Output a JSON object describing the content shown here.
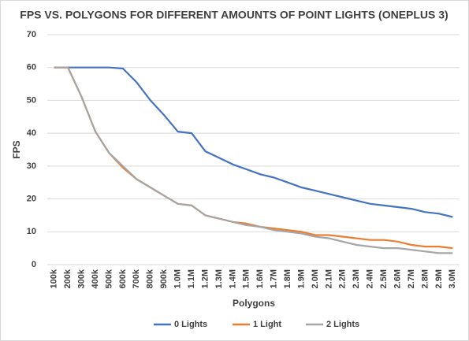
{
  "chart_data": {
    "type": "line",
    "title": "FPS VS. POLYGONS FOR DIFFERENT AMOUNTS OF POINT LIGHTS (ONEPLUS 3)",
    "x_label": "Polygons",
    "y_label": "FPS",
    "categories": [
      "100k",
      "200k",
      "300k",
      "400k",
      "500k",
      "600k",
      "700k",
      "800k",
      "900k",
      "1.0M",
      "1.1M",
      "1.2M",
      "1.3M",
      "1.4M",
      "1.5M",
      "1.6M",
      "1.7M",
      "1.8M",
      "1.9M",
      "2.0M",
      "2.1M",
      "2.2M",
      "2.3M",
      "2.4M",
      "2.5M",
      "2.6M",
      "2.7M",
      "2.8M",
      "2.9M",
      "3.0M"
    ],
    "series": [
      {
        "name": "0 Lights",
        "color": "#4472c4",
        "values": [
          60,
          60,
          60,
          60,
          60,
          59.7,
          55.5,
          50,
          45.5,
          40.5,
          40,
          34.5,
          32.5,
          30.5,
          29,
          27.5,
          26.5,
          25,
          23.5,
          22.5,
          21.5,
          20.5,
          19.5,
          18.5,
          18,
          17.5,
          17,
          16,
          15.5,
          14.5
        ]
      },
      {
        "name": "1 Light",
        "color": "#ed7d31",
        "values": [
          60,
          60,
          51,
          40.5,
          34,
          29.5,
          26,
          23.5,
          21,
          18.5,
          18,
          15,
          14,
          13,
          12.5,
          11.5,
          11,
          10.5,
          10,
          9,
          9,
          8.5,
          8,
          7.5,
          7.5,
          7,
          6,
          5.5,
          5.5,
          5
        ]
      },
      {
        "name": "2 Lights",
        "color": "#a5a5a5",
        "values": [
          60,
          60,
          51,
          40.5,
          34,
          30,
          26,
          23.5,
          21,
          18.5,
          18,
          15,
          14,
          13,
          12,
          11.5,
          10.5,
          10,
          9.5,
          8.5,
          8,
          7,
          6,
          5.5,
          5,
          5,
          4.5,
          4,
          3.5,
          3.5
        ]
      }
    ],
    "ylim": [
      0,
      70
    ],
    "yticks": [
      0,
      10,
      20,
      30,
      40,
      50,
      60,
      70
    ],
    "grid": true,
    "legend": "bottom"
  }
}
